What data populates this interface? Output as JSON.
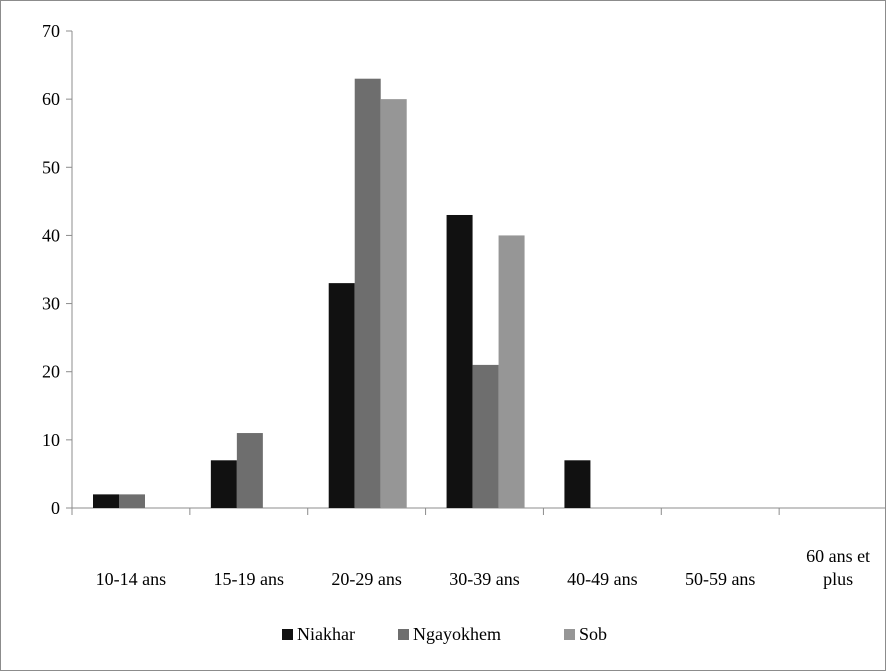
{
  "chart_data": {
    "type": "bar",
    "categories": [
      [
        "10-14 ans"
      ],
      [
        "15-19 ans"
      ],
      [
        "20-29 ans"
      ],
      [
        "30-39 ans"
      ],
      [
        "40-49 ans"
      ],
      [
        "50-59 ans"
      ],
      [
        "60 ans et",
        "plus"
      ]
    ],
    "series": [
      {
        "name": "Niakhar",
        "values": [
          2,
          7,
          33,
          43,
          7,
          0,
          0
        ],
        "color": "#111111"
      },
      {
        "name": "Ngayokhem",
        "values": [
          2,
          11,
          63,
          21,
          0,
          0,
          0
        ],
        "color": "#6e6e6e"
      },
      {
        "name": "Sob",
        "values": [
          0,
          0,
          60,
          40,
          0,
          0,
          0
        ],
        "color": "#969696"
      }
    ],
    "ylim": [
      0,
      70
    ],
    "yticks": [
      0,
      10,
      20,
      30,
      40,
      50,
      60,
      70
    ],
    "legend": "bottom",
    "grid": false,
    "title": "",
    "xlabel": "",
    "ylabel": ""
  }
}
